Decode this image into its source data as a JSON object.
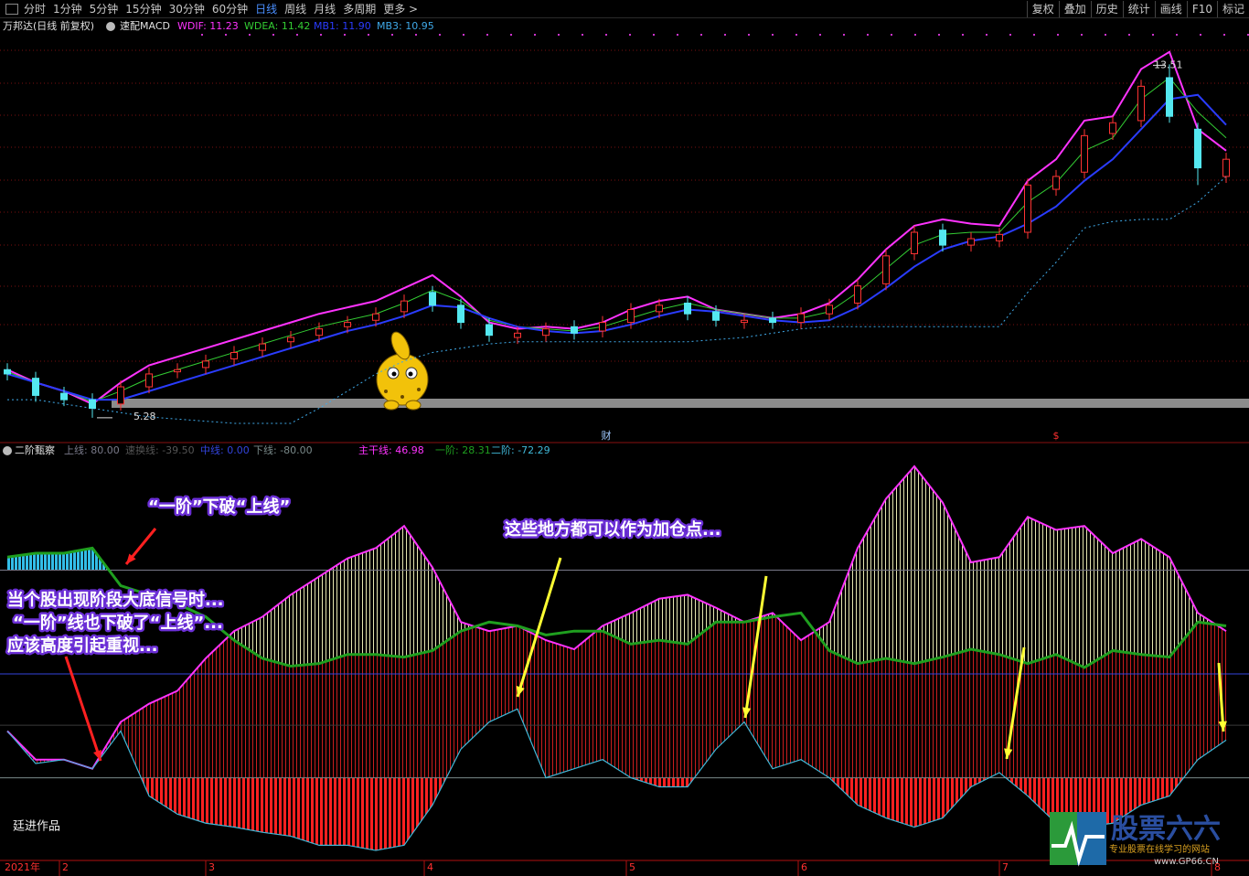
{
  "toolbar": {
    "left": [
      "分时",
      "1分钟",
      "5分钟",
      "15分钟",
      "30分钟",
      "60分钟",
      "日线",
      "周线",
      "月线",
      "多周期",
      "更多 >"
    ],
    "active": 6,
    "right": [
      "复权",
      "叠加",
      "历史",
      "统计",
      "画线",
      "F10",
      "标记"
    ]
  },
  "chart_data": [
    {
      "type": "candlestick",
      "title": "万邦达(日线 前复权)",
      "subtitle": "速配MACD",
      "ylim": [
        5.0,
        14.2
      ],
      "up_color": "#ff3333",
      "down_color": "#54e8f0",
      "candles": {
        "open": [
          6.4,
          6.2,
          5.85,
          5.7,
          5.6,
          6.0,
          6.35,
          6.45,
          6.65,
          6.85,
          7.05,
          7.2,
          7.4,
          7.55,
          7.75,
          8.2,
          7.9,
          7.45,
          7.15,
          7.2,
          7.4,
          7.3,
          7.5,
          7.75,
          7.95,
          7.75,
          7.5,
          7.6,
          7.5,
          7.7,
          7.95,
          8.4,
          9.1,
          9.65,
          9.3,
          9.4,
          9.6,
          10.6,
          11.0,
          11.9,
          12.2,
          13.2,
          12.0,
          10.9
        ],
        "high": [
          6.55,
          6.35,
          6.0,
          5.85,
          6.15,
          6.45,
          6.55,
          6.75,
          6.95,
          7.15,
          7.3,
          7.5,
          7.65,
          7.85,
          8.15,
          8.35,
          8.05,
          7.6,
          7.4,
          7.5,
          7.55,
          7.65,
          7.95,
          8.05,
          8.1,
          7.9,
          7.7,
          7.75,
          7.85,
          8.05,
          8.5,
          9.2,
          9.75,
          9.8,
          9.6,
          9.7,
          10.85,
          11.05,
          12.0,
          12.3,
          13.15,
          13.51,
          12.15,
          11.45
        ],
        "low": [
          6.15,
          5.65,
          5.55,
          5.28,
          5.45,
          5.85,
          6.2,
          6.3,
          6.5,
          6.7,
          6.9,
          7.05,
          7.25,
          7.4,
          7.6,
          7.75,
          7.35,
          7.05,
          7.0,
          7.05,
          7.1,
          7.15,
          7.35,
          7.6,
          7.55,
          7.4,
          7.35,
          7.35,
          7.35,
          7.55,
          7.8,
          8.25,
          8.95,
          9.15,
          9.15,
          9.25,
          9.45,
          10.45,
          10.85,
          11.75,
          12.05,
          12.15,
          10.7,
          10.75
        ],
        "close": [
          6.3,
          5.8,
          5.7,
          5.5,
          6.0,
          6.3,
          6.4,
          6.6,
          6.8,
          7.0,
          7.15,
          7.35,
          7.5,
          7.7,
          8.0,
          7.9,
          7.5,
          7.2,
          7.25,
          7.35,
          7.25,
          7.5,
          7.8,
          7.9,
          7.7,
          7.55,
          7.55,
          7.5,
          7.7,
          7.9,
          8.35,
          9.05,
          9.6,
          9.3,
          9.45,
          9.55,
          10.7,
          10.9,
          11.85,
          12.15,
          13.0,
          12.3,
          11.1,
          11.3
        ]
      },
      "series": [
        {
          "name": "WDIF: 11.23",
          "color": "#ff33ff",
          "values": [
            6.4,
            6.1,
            5.9,
            5.6,
            6.1,
            6.5,
            6.7,
            6.9,
            7.1,
            7.3,
            7.5,
            7.7,
            7.85,
            8.0,
            8.3,
            8.6,
            8.1,
            7.5,
            7.35,
            7.4,
            7.35,
            7.5,
            7.8,
            8.0,
            8.1,
            7.8,
            7.7,
            7.6,
            7.7,
            7.95,
            8.5,
            9.2,
            9.75,
            9.9,
            9.8,
            9.75,
            10.8,
            11.3,
            12.2,
            12.3,
            13.4,
            13.8,
            12.0,
            11.5
          ]
        },
        {
          "name": "WDEA: 11.42",
          "color": "#33cc33",
          "values": [
            6.35,
            6.1,
            5.9,
            5.65,
            5.9,
            6.2,
            6.4,
            6.6,
            6.8,
            7.0,
            7.2,
            7.4,
            7.55,
            7.7,
            7.95,
            8.25,
            8.0,
            7.55,
            7.4,
            7.35,
            7.3,
            7.4,
            7.6,
            7.8,
            7.95,
            7.8,
            7.7,
            7.6,
            7.6,
            7.75,
            8.2,
            8.75,
            9.3,
            9.55,
            9.6,
            9.6,
            10.3,
            10.75,
            11.5,
            11.8,
            12.7,
            13.2,
            12.4,
            11.8
          ]
        },
        {
          "name": "MB1: 11.90",
          "color": "#2a3cff",
          "values": [
            6.3,
            6.1,
            5.9,
            5.7,
            5.7,
            5.9,
            6.1,
            6.3,
            6.5,
            6.7,
            6.9,
            7.1,
            7.3,
            7.45,
            7.65,
            7.9,
            7.85,
            7.6,
            7.4,
            7.3,
            7.25,
            7.3,
            7.45,
            7.65,
            7.8,
            7.75,
            7.65,
            7.55,
            7.5,
            7.55,
            7.85,
            8.3,
            8.8,
            9.2,
            9.4,
            9.5,
            9.8,
            10.2,
            10.8,
            11.3,
            12.0,
            12.7,
            12.8,
            12.1
          ]
        },
        {
          "name": "MB3: 10.95",
          "color": "#3fa9e8",
          "style": "dotted",
          "values": [
            5.7,
            5.7,
            5.6,
            5.5,
            5.4,
            5.3,
            5.25,
            5.2,
            5.15,
            5.15,
            5.15,
            5.5,
            5.9,
            6.3,
            6.6,
            6.8,
            6.9,
            7.0,
            7.05,
            7.05,
            7.05,
            7.05,
            7.05,
            7.05,
            7.05,
            7.1,
            7.15,
            7.25,
            7.35,
            7.4,
            7.4,
            7.4,
            7.4,
            7.4,
            7.4,
            7.4,
            8.2,
            8.9,
            9.7,
            9.85,
            9.9,
            9.9,
            10.3,
            10.9
          ]
        }
      ],
      "markers": [
        "财",
        "$"
      ]
    },
    {
      "type": "line",
      "title": "二阶甄察",
      "ylim": [
        -143,
        167
      ],
      "levels": [
        {
          "value": 80,
          "label": "上线: 80.00",
          "color": "#7a7a8a"
        },
        {
          "value": -39.5,
          "label": "速换线: -39.50",
          "color": "#3a3a3a"
        },
        {
          "value": 0,
          "label": "中线: 0.00",
          "color": "#3344dd"
        },
        {
          "value": -80,
          "label": "下线: -80.00",
          "color": "#7a8a8a"
        }
      ],
      "series": [
        {
          "name": "主干线: 46.98",
          "color": "#ff33ff",
          "values": [
            -44,
            -66,
            -66,
            -73,
            -37,
            -23,
            -13,
            12,
            33,
            44,
            61,
            75,
            89,
            97,
            114,
            82,
            40,
            33,
            37,
            26,
            19,
            37,
            47,
            58,
            61,
            51,
            40,
            47,
            26,
            40,
            97,
            135,
            160,
            132,
            86,
            90,
            121,
            111,
            114,
            93,
            104,
            90,
            47,
            33
          ]
        },
        {
          "name": "一阶: 28.31",
          "color": "#1f9f1f",
          "values": [
            90,
            93,
            93,
            97,
            68,
            61,
            54,
            44,
            26,
            12,
            6,
            8,
            15,
            15,
            13,
            18,
            33,
            40,
            37,
            30,
            33,
            33,
            23,
            26,
            23,
            40,
            40,
            44,
            47,
            18,
            8,
            12,
            8,
            13,
            19,
            15,
            8,
            15,
            5,
            18,
            15,
            13,
            40,
            37
          ]
        },
        {
          "name": "二阶: -72.29",
          "color": "#40b8d8",
          "values": [
            -44,
            -69,
            -66,
            -73,
            -44,
            -94,
            -108,
            -115,
            -118,
            -122,
            -125,
            -132,
            -132,
            -136,
            -132,
            -101,
            -58,
            -37,
            -27,
            -80,
            -73,
            -66,
            -80,
            -87,
            -87,
            -58,
            -37,
            -73,
            -66,
            -80,
            -101,
            -111,
            -118,
            -111,
            -87,
            -76,
            -94,
            -115,
            -118,
            -115,
            -101,
            -94,
            -66,
            -51
          ]
        }
      ]
    }
  ],
  "annotations": [
    "“一阶”下破“上线”",
    "这些地方都可以作为加仓点...",
    "当个股出现阶段大底信号时...",
    "“一阶”线也下破了“上线”...",
    "应该高度引起重视..."
  ],
  "author": "廷进作品",
  "dates": [
    "2021年",
    "2",
    "3",
    "4",
    "5",
    "6",
    "7",
    "8"
  ],
  "watermark": {
    "title": "股票六六",
    "slogan": "专业股票在线学习的网站",
    "url": "www.GP66.CN"
  }
}
